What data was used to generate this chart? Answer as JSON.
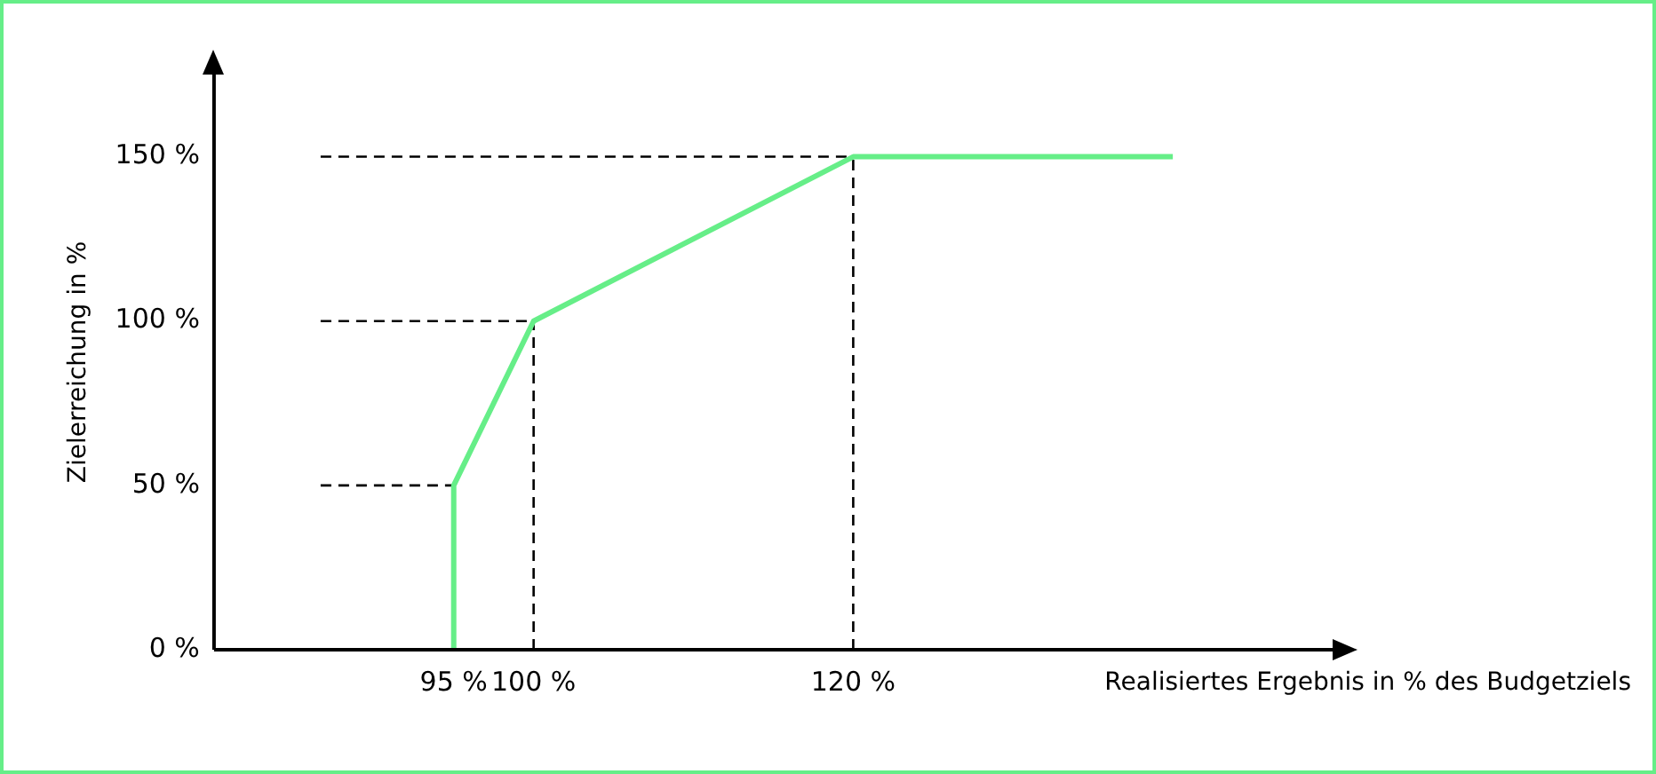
{
  "chart_data": {
    "type": "line",
    "xlabel": "Realisiertes Ergebnis in % des Budgetziels",
    "ylabel": "Zielerreichung in %",
    "x": [
      95,
      95,
      100,
      120,
      140
    ],
    "series": [
      {
        "color": "#66ee88",
        "values": [
          0,
          50,
          100,
          150,
          150
        ]
      }
    ],
    "xlim": [
      80,
      150
    ],
    "xticks": [
      {
        "value": 95,
        "label": "95 %"
      },
      {
        "value": 100,
        "label": "100 %"
      },
      {
        "value": 120,
        "label": "120 %"
      }
    ],
    "ylim": [
      0,
      175
    ],
    "yticks": [
      {
        "value": 0,
        "label": "0 %"
      },
      {
        "value": 50,
        "label": "50 %"
      },
      {
        "value": 100,
        "label": "100 %"
      },
      {
        "value": 150,
        "label": "150 %"
      }
    ],
    "ref_lines": [
      {
        "axis": "y",
        "value": 50,
        "line_style": "dashed"
      },
      {
        "axis": "y",
        "value": 100,
        "line_style": "dashed"
      },
      {
        "axis": "y",
        "value": 150,
        "line_style": "dashed"
      },
      {
        "axis": "x",
        "value": 100,
        "line_style": "dashed"
      },
      {
        "axis": "x",
        "value": 120,
        "line_style": "dashed"
      }
    ],
    "grid": false,
    "legend": false,
    "marker": "none",
    "line_style": "solid"
  }
}
